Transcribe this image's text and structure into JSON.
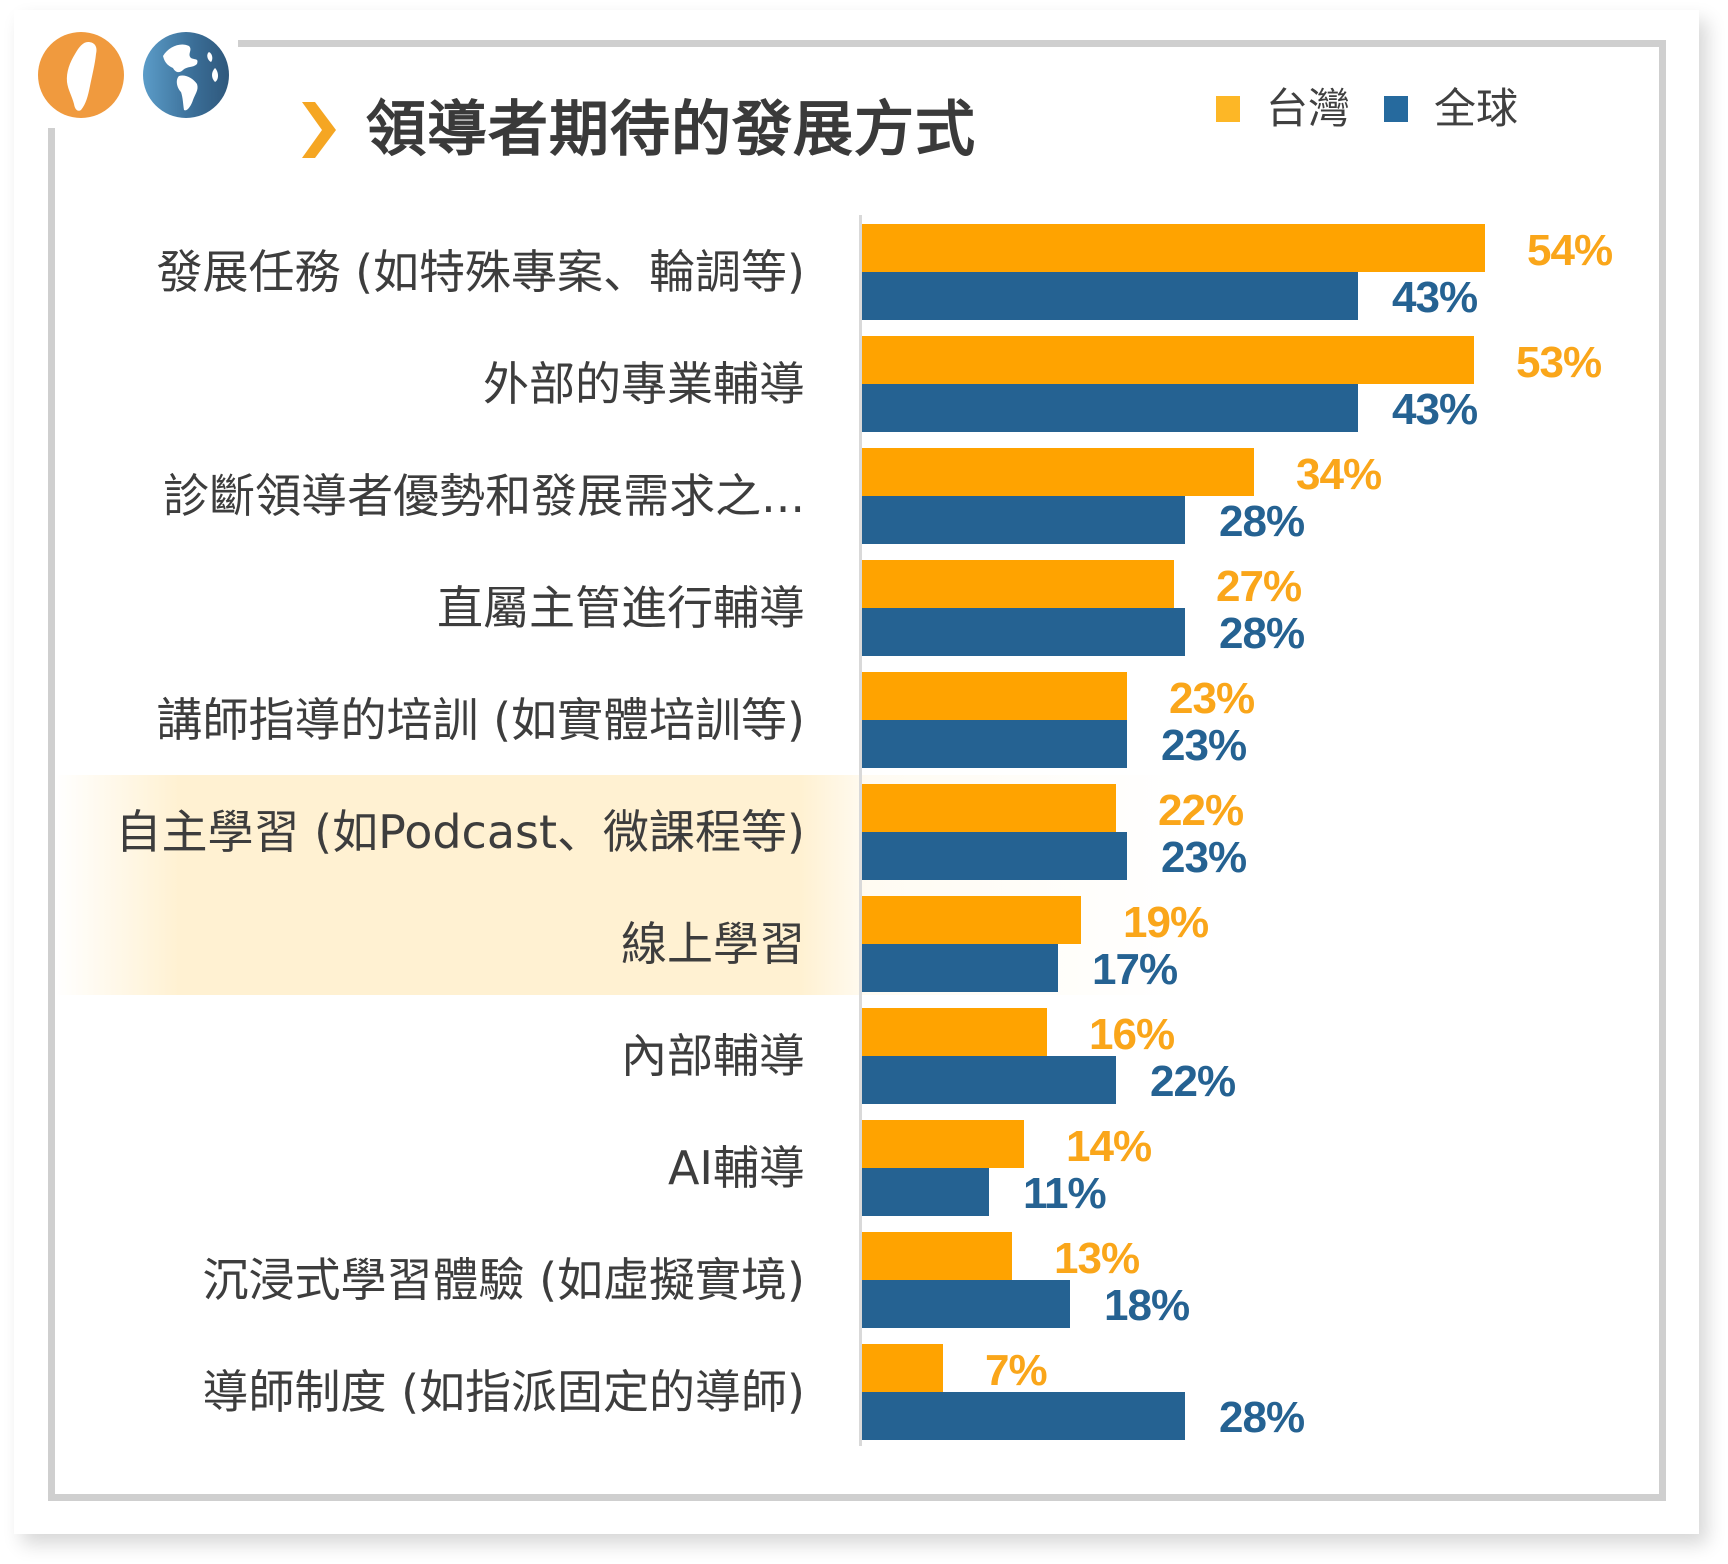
{
  "title": "領導者期待的發展方式",
  "legend": [
    {
      "label": "台灣",
      "color": "#FFA300"
    },
    {
      "label": "全球",
      "color": "#256292"
    }
  ],
  "icons": {
    "taiwan": "taiwan-map-icon",
    "globe": "globe-icon",
    "title_marker": "chevron-right-icon"
  },
  "highlighted_rows": [
    "自主學習 (如Podcast、微課程等)",
    "線上學習"
  ],
  "rows": [
    {
      "label": "發展任務 (如特殊專案、輪調等)",
      "taiwan": "54%",
      "global": "43%"
    },
    {
      "label": "外部的專業輔導",
      "taiwan": "53%",
      "global": "43%"
    },
    {
      "label": "診斷領導者優勢和發展需求之...",
      "taiwan": "34%",
      "global": "28%"
    },
    {
      "label": "直屬主管進行輔導",
      "taiwan": "27%",
      "global": "28%"
    },
    {
      "label": "講師指導的培訓 (如實體培訓等)",
      "taiwan": "23%",
      "global": "23%"
    },
    {
      "label": "自主學習 (如Podcast、微課程等)",
      "taiwan": "22%",
      "global": "23%"
    },
    {
      "label": "線上學習",
      "taiwan": "19%",
      "global": "17%"
    },
    {
      "label": "內部輔導",
      "taiwan": "16%",
      "global": "22%"
    },
    {
      "label": "AI輔導",
      "taiwan": "14%",
      "global": "11%"
    },
    {
      "label": "沉浸式學習體驗 (如虛擬實境)",
      "taiwan": "13%",
      "global": "18%"
    },
    {
      "label": "導師制度 (如指派固定的導師)",
      "taiwan": "7%",
      "global": "28%"
    }
  ],
  "chart_data": {
    "type": "bar",
    "orientation": "horizontal",
    "title": "領導者期待的發展方式",
    "xlabel": "",
    "ylabel": "",
    "categories": [
      "發展任務 (如特殊專案、輪調等)",
      "外部的專業輔導",
      "診斷領導者優勢和發展需求之...",
      "直屬主管進行輔導",
      "講師指導的培訓 (如實體培訓等)",
      "自主學習 (如Podcast、微課程等)",
      "線上學習",
      "內部輔導",
      "AI輔導",
      "沉浸式學習體驗 (如虛擬實境)",
      "導師制度 (如指派固定的導師)"
    ],
    "series": [
      {
        "name": "台灣",
        "color": "#FFA300",
        "values": [
          54,
          53,
          34,
          27,
          23,
          22,
          19,
          16,
          14,
          13,
          7
        ]
      },
      {
        "name": "全球",
        "color": "#256292",
        "values": [
          43,
          43,
          28,
          28,
          23,
          23,
          17,
          22,
          11,
          18,
          28
        ]
      }
    ],
    "unit": "%",
    "data_labels": true,
    "grid": false,
    "legend_position": "top-right",
    "xlim": [
      0,
      60
    ]
  }
}
